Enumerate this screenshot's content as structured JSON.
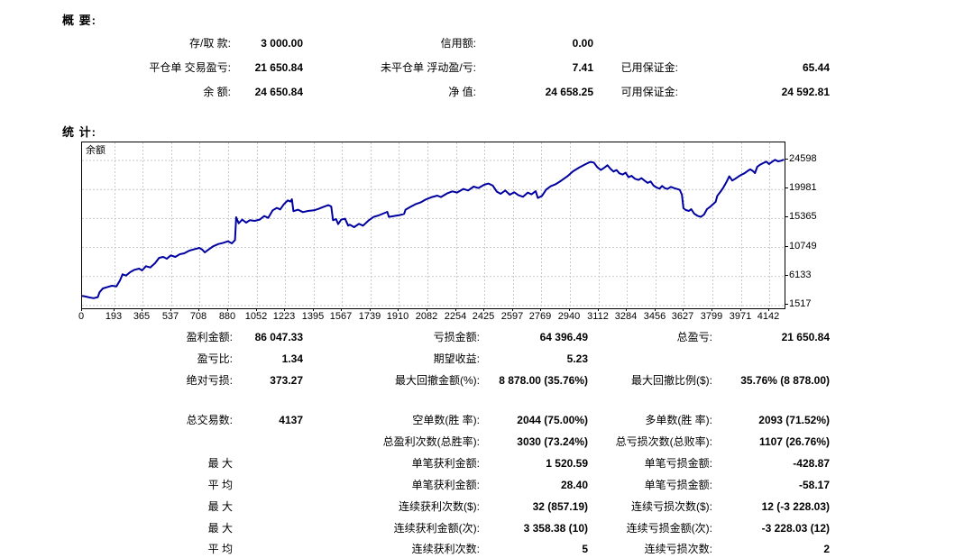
{
  "summary": {
    "title": "概 要:",
    "rows": [
      [
        "存/取 款:",
        "3 000.00",
        "信用额:",
        "0.00",
        "",
        ""
      ],
      [
        "平仓单 交易盈亏:",
        "21 650.84",
        "未平仓单 浮动盈/亏:",
        "7.41",
        "已用保证金:",
        "65.44"
      ],
      [
        "余 额:",
        "24 650.84",
        "净 值:",
        "24 658.25",
        "可用保证金:",
        "24 592.81"
      ]
    ]
  },
  "statistics": {
    "title": "统 计:",
    "rows": [
      [
        "盈利金额:",
        "86 047.33",
        "亏损金额:",
        "64 396.49",
        "总盈亏:",
        "21 650.84"
      ],
      [
        "盈亏比:",
        "1.34",
        "期望收益:",
        "5.23",
        "",
        ""
      ],
      [
        "绝对亏损:",
        "373.27",
        "最大回撤金额(%):",
        "8 878.00 (35.76%)",
        "最大回撤比例($):",
        "35.76% (8 878.00)"
      ],
      [
        "总交易数:",
        "4137",
        "空单数(胜 率):",
        "2044 (75.00%)",
        "多单数(胜 率):",
        "2093 (71.52%)"
      ],
      [
        "",
        "",
        "总盈利次数(总胜率):",
        "3030 (73.24%)",
        "总亏损次数(总败率):",
        "1107 (26.76%)"
      ],
      [
        "最 大",
        "",
        "单笔获利金额:",
        "1 520.59",
        "单笔亏损金额:",
        "-428.87"
      ],
      [
        "平 均",
        "",
        "单笔获利金额:",
        "28.40",
        "单笔亏损金额:",
        "-58.17"
      ],
      [
        "最 大",
        "",
        "连续获利次数($):",
        "32 (857.19)",
        "连续亏损次数($):",
        "12 (-3 228.03)"
      ],
      [
        "最 大",
        "",
        "连续获利金额(次):",
        "3 358.38 (10)",
        "连续亏损金额(次):",
        "-3 228.03 (12)"
      ],
      [
        "平 均",
        "",
        "连续获利次数:",
        "5",
        "连续亏损次数:",
        "2"
      ]
    ]
  },
  "chart_data": {
    "type": "line",
    "title": "余额",
    "legend": [
      "余额"
    ],
    "xlabel": "",
    "ylabel": "",
    "x_ticks": [
      0,
      193,
      365,
      537,
      708,
      880,
      1052,
      1223,
      1395,
      1567,
      1739,
      1910,
      2082,
      2254,
      2425,
      2597,
      2769,
      2940,
      3112,
      3284,
      3456,
      3627,
      3799,
      3971,
      4142
    ],
    "y_ticks": [
      24598,
      19981,
      15365,
      10749,
      6133,
      1517
    ],
    "x_range": [
      0,
      4235
    ],
    "y_range": [
      1517,
      24598
    ],
    "grid": true,
    "colors": {
      "curve": "#0000a0",
      "grid": "#c9c9c9",
      "border": "#000000",
      "text": "#000000"
    },
    "points": [
      [
        0,
        3000
      ],
      [
        20,
        2900
      ],
      [
        45,
        2730
      ],
      [
        70,
        2627
      ],
      [
        95,
        2800
      ],
      [
        105,
        3550
      ],
      [
        125,
        4170
      ],
      [
        155,
        4410
      ],
      [
        180,
        4600
      ],
      [
        207,
        4500
      ],
      [
        229,
        5460
      ],
      [
        244,
        6420
      ],
      [
        265,
        6225
      ],
      [
        289,
        6750
      ],
      [
        316,
        7130
      ],
      [
        344,
        7320
      ],
      [
        362,
        7040
      ],
      [
        385,
        7710
      ],
      [
        411,
        7515
      ],
      [
        440,
        8185
      ],
      [
        465,
        9045
      ],
      [
        489,
        9190
      ],
      [
        511,
        8900
      ],
      [
        535,
        9430
      ],
      [
        562,
        9190
      ],
      [
        589,
        9620
      ],
      [
        616,
        9760
      ],
      [
        647,
        10190
      ],
      [
        680,
        10430
      ],
      [
        707,
        10620
      ],
      [
        725,
        10335
      ],
      [
        740,
        9905
      ],
      [
        756,
        10240
      ],
      [
        789,
        10860
      ],
      [
        822,
        11240
      ],
      [
        853,
        11435
      ],
      [
        880,
        11675
      ],
      [
        903,
        11340
      ],
      [
        922,
        11865
      ],
      [
        929,
        15500
      ],
      [
        944,
        14540
      ],
      [
        966,
        15115
      ],
      [
        989,
        14640
      ],
      [
        1011,
        15020
      ],
      [
        1040,
        14925
      ],
      [
        1071,
        15115
      ],
      [
        1098,
        15690
      ],
      [
        1122,
        15400
      ],
      [
        1149,
        16600
      ],
      [
        1174,
        16980
      ],
      [
        1194,
        16740
      ],
      [
        1216,
        17550
      ],
      [
        1240,
        18175
      ],
      [
        1256,
        17985
      ],
      [
        1265,
        18365
      ],
      [
        1274,
        16455
      ],
      [
        1302,
        16695
      ],
      [
        1331,
        16310
      ],
      [
        1362,
        16500
      ],
      [
        1398,
        16600
      ],
      [
        1425,
        16835
      ],
      [
        1458,
        17170
      ],
      [
        1484,
        17410
      ],
      [
        1502,
        17220
      ],
      [
        1513,
        15020
      ],
      [
        1531,
        15210
      ],
      [
        1544,
        14400
      ],
      [
        1562,
        15115
      ],
      [
        1585,
        15260
      ],
      [
        1604,
        14160
      ],
      [
        1614,
        14305
      ],
      [
        1640,
        13920
      ],
      [
        1669,
        14450
      ],
      [
        1694,
        14160
      ],
      [
        1727,
        14975
      ],
      [
        1758,
        15545
      ],
      [
        1787,
        15785
      ],
      [
        1814,
        16075
      ],
      [
        1840,
        16360
      ],
      [
        1849,
        15545
      ],
      [
        1881,
        15690
      ],
      [
        1914,
        15835
      ],
      [
        1941,
        16025
      ],
      [
        1950,
        16695
      ],
      [
        1978,
        17125
      ],
      [
        2009,
        17555
      ],
      [
        2040,
        17840
      ],
      [
        2072,
        18320
      ],
      [
        2109,
        18700
      ],
      [
        2141,
        18940
      ],
      [
        2163,
        18700
      ],
      [
        2200,
        19275
      ],
      [
        2232,
        19610
      ],
      [
        2260,
        19420
      ],
      [
        2298,
        19990
      ],
      [
        2327,
        19755
      ],
      [
        2360,
        20375
      ],
      [
        2389,
        20135
      ],
      [
        2423,
        20660
      ],
      [
        2450,
        20855
      ],
      [
        2476,
        20520
      ],
      [
        2500,
        19560
      ],
      [
        2523,
        19225
      ],
      [
        2551,
        19755
      ],
      [
        2578,
        19085
      ],
      [
        2605,
        19465
      ],
      [
        2631,
        18990
      ],
      [
        2658,
        18750
      ],
      [
        2687,
        19420
      ],
      [
        2709,
        19130
      ],
      [
        2734,
        19655
      ],
      [
        2747,
        18560
      ],
      [
        2772,
        18890
      ],
      [
        2798,
        19895
      ],
      [
        2825,
        20420
      ],
      [
        2852,
        20710
      ],
      [
        2887,
        21285
      ],
      [
        2925,
        22000
      ],
      [
        2960,
        22800
      ],
      [
        2996,
        23400
      ],
      [
        3032,
        23900
      ],
      [
        3063,
        24300
      ],
      [
        3085,
        24200
      ],
      [
        3105,
        23480
      ],
      [
        3127,
        23000
      ],
      [
        3149,
        23390
      ],
      [
        3167,
        23770
      ],
      [
        3187,
        23145
      ],
      [
        3203,
        22765
      ],
      [
        3221,
        23000
      ],
      [
        3239,
        22480
      ],
      [
        3258,
        22290
      ],
      [
        3276,
        22575
      ],
      [
        3294,
        21855
      ],
      [
        3312,
        22095
      ],
      [
        3332,
        21615
      ],
      [
        3354,
        21425
      ],
      [
        3372,
        21715
      ],
      [
        3390,
        21330
      ],
      [
        3409,
        20950
      ],
      [
        3427,
        21185
      ],
      [
        3445,
        20520
      ],
      [
        3463,
        20230
      ],
      [
        3481,
        20040
      ],
      [
        3496,
        20470
      ],
      [
        3514,
        20090
      ],
      [
        3530,
        19990
      ],
      [
        3549,
        20325
      ],
      [
        3567,
        20135
      ],
      [
        3585,
        19990
      ],
      [
        3603,
        19850
      ],
      [
        3616,
        19085
      ],
      [
        3625,
        16935
      ],
      [
        3639,
        16645
      ],
      [
        3658,
        16505
      ],
      [
        3672,
        16790
      ],
      [
        3690,
        16075
      ],
      [
        3712,
        15690
      ],
      [
        3730,
        15545
      ],
      [
        3749,
        15930
      ],
      [
        3767,
        16790
      ],
      [
        3785,
        17125
      ],
      [
        3803,
        17555
      ],
      [
        3819,
        17940
      ],
      [
        3829,
        18895
      ],
      [
        3847,
        19515
      ],
      [
        3865,
        20185
      ],
      [
        3883,
        21045
      ],
      [
        3901,
        22000
      ],
      [
        3919,
        21330
      ],
      [
        3937,
        21620
      ],
      [
        3956,
        21955
      ],
      [
        3974,
        22240
      ],
      [
        3992,
        22480
      ],
      [
        4010,
        22815
      ],
      [
        4028,
        23100
      ],
      [
        4043,
        22860
      ],
      [
        4056,
        22525
      ],
      [
        4070,
        23530
      ],
      [
        4088,
        23865
      ],
      [
        4106,
        24105
      ],
      [
        4125,
        24340
      ],
      [
        4141,
        23960
      ],
      [
        4159,
        24295
      ],
      [
        4177,
        24630
      ],
      [
        4195,
        24390
      ],
      [
        4213,
        24485
      ],
      [
        4231,
        24650
      ]
    ]
  }
}
